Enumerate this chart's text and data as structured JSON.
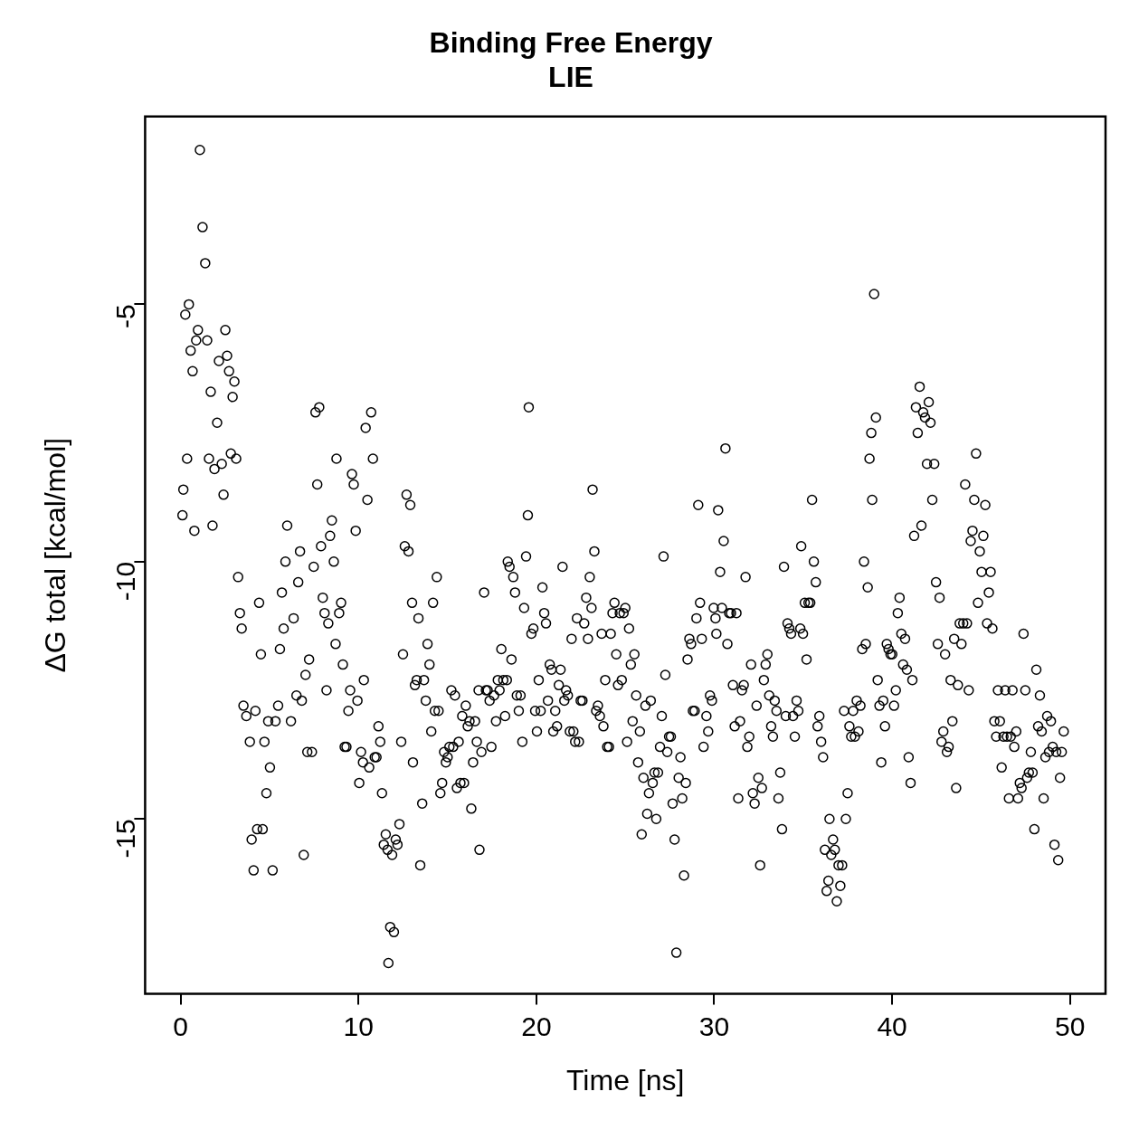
{
  "chart_data": {
    "type": "scatter",
    "title": "Binding Free Energy",
    "subtitle": "LIE",
    "xlabel": "Time [ns]",
    "ylabel": "ΔG total [kcal/mol]",
    "color": "#000000",
    "marker": "circle",
    "grid": false,
    "legend": false,
    "xlim": [
      -2,
      52
    ],
    "ylim": [
      -18.4,
      -1.35
    ],
    "xticks": [
      0,
      10,
      20,
      30,
      40,
      50
    ],
    "yticks": [
      -5,
      -10,
      -15
    ],
    "x": [
      0.1,
      0.15,
      0.26,
      0.36,
      0.46,
      0.56,
      0.67,
      0.77,
      0.87,
      0.97,
      1.08,
      1.23,
      1.38,
      1.49,
      1.59,
      1.69,
      1.79,
      1.9,
      2.05,
      2.15,
      2.31,
      2.41,
      2.51,
      2.61,
      2.72,
      2.82,
      2.92,
      3.02,
      3.12,
      3.23,
      3.33,
      3.43,
      3.53,
      3.69,
      3.89,
      3.99,
      4.1,
      4.2,
      4.3,
      4.41,
      4.51,
      4.61,
      4.71,
      4.82,
      4.92,
      5.02,
      5.17,
      5.33,
      5.48,
      5.58,
      5.69,
      5.79,
      5.89,
      5.99,
      6.2,
      6.35,
      6.51,
      6.61,
      6.71,
      6.81,
      6.92,
      7.02,
      7.12,
      7.22,
      7.38,
      7.48,
      7.58,
      7.68,
      7.79,
      7.89,
      7.99,
      8.09,
      8.2,
      8.3,
      8.4,
      8.5,
      8.61,
      8.71,
      8.76,
      8.91,
      9.02,
      9.12,
      9.22,
      9.32,
      9.43,
      9.53,
      9.63,
      9.73,
      9.84,
      9.94,
      10.04,
      10.14,
      10.25,
      10.3,
      10.4,
      10.5,
      10.6,
      10.71,
      10.81,
      10.91,
      11.01,
      11.12,
      11.22,
      11.32,
      11.42,
      11.53,
      11.63,
      11.68,
      11.78,
      11.89,
      11.99,
      12.09,
      12.19,
      12.3,
      12.4,
      12.5,
      12.6,
      12.7,
      12.81,
      12.91,
      13.01,
      13.06,
      13.17,
      13.27,
      13.37,
      13.47,
      13.58,
      13.68,
      13.78,
      13.88,
      13.99,
      14.09,
      14.19,
      14.29,
      14.4,
      14.5,
      14.6,
      14.7,
      14.81,
      14.91,
      15.01,
      15.11,
      15.22,
      15.32,
      15.42,
      15.53,
      15.63,
      15.73,
      15.83,
      15.93,
      16.03,
      16.14,
      16.24,
      16.34,
      16.44,
      16.55,
      16.65,
      16.75,
      16.8,
      16.91,
      17.06,
      17.16,
      17.26,
      17.37,
      17.47,
      17.62,
      17.73,
      17.83,
      17.93,
      18.03,
      18.14,
      18.24,
      18.34,
      18.39,
      18.49,
      18.6,
      18.7,
      18.8,
      18.9,
      19.01,
      19.11,
      19.21,
      19.31,
      19.42,
      19.52,
      19.57,
      19.72,
      19.83,
      19.93,
      20.03,
      20.13,
      20.24,
      20.34,
      20.44,
      20.54,
      20.65,
      20.75,
      20.85,
      20.95,
      21.06,
      21.16,
      21.26,
      21.36,
      21.47,
      21.57,
      21.67,
      21.77,
      21.88,
      21.98,
      22.08,
      22.18,
      22.28,
      22.39,
      22.49,
      22.59,
      22.69,
      22.8,
      22.9,
      23.0,
      23.1,
      23.16,
      23.26,
      23.36,
      23.46,
      23.57,
      23.67,
      23.77,
      23.87,
      23.98,
      24.08,
      24.18,
      24.28,
      24.39,
      24.49,
      24.59,
      24.69,
      24.8,
      24.9,
      25.0,
      25.1,
      25.21,
      25.31,
      25.41,
      25.51,
      25.61,
      25.72,
      25.82,
      25.92,
      26.02,
      26.13,
      26.23,
      26.33,
      26.43,
      26.54,
      26.64,
      26.74,
      26.84,
      26.95,
      27.05,
      27.15,
      27.25,
      27.36,
      27.46,
      27.56,
      27.66,
      27.77,
      27.87,
      28.0,
      28.1,
      28.2,
      28.3,
      28.4,
      28.5,
      28.6,
      28.7,
      28.8,
      28.9,
      29.0,
      29.1,
      29.2,
      29.3,
      29.4,
      29.56,
      29.66,
      29.76,
      29.87,
      29.97,
      30.07,
      30.12,
      30.22,
      30.33,
      30.43,
      30.53,
      30.63,
      30.74,
      30.84,
      30.94,
      31.05,
      31.15,
      31.25,
      31.35,
      31.45,
      31.56,
      31.66,
      31.76,
      31.86,
      31.97,
      32.07,
      32.17,
      32.27,
      32.38,
      32.48,
      32.58,
      32.68,
      32.79,
      32.89,
      32.99,
      33.09,
      33.2,
      33.3,
      33.4,
      33.5,
      33.61,
      33.71,
      33.81,
      33.92,
      34.02,
      34.12,
      34.22,
      34.32,
      34.43,
      34.53,
      34.63,
      34.73,
      34.84,
      34.89,
      34.99,
      35.09,
      35.19,
      35.3,
      35.4,
      35.5,
      35.6,
      35.71,
      35.81,
      35.91,
      36.01,
      36.12,
      36.22,
      36.32,
      36.42,
      36.48,
      36.58,
      36.68,
      36.78,
      36.89,
      36.99,
      37.09,
      37.19,
      37.3,
      37.4,
      37.5,
      37.6,
      37.7,
      37.81,
      37.91,
      38.01,
      38.11,
      38.22,
      38.32,
      38.42,
      38.52,
      38.63,
      38.73,
      38.83,
      38.88,
      38.99,
      39.09,
      39.19,
      39.29,
      39.39,
      39.5,
      39.6,
      39.7,
      39.8,
      39.91,
      40.01,
      40.11,
      40.21,
      40.32,
      40.42,
      40.52,
      40.62,
      40.73,
      40.83,
      40.93,
      41.04,
      41.14,
      41.24,
      41.34,
      41.44,
      41.55,
      41.65,
      41.75,
      41.85,
      41.96,
      42.06,
      42.16,
      42.26,
      42.37,
      42.47,
      42.57,
      42.67,
      42.78,
      42.88,
      42.98,
      43.08,
      43.18,
      43.29,
      43.39,
      43.49,
      43.6,
      43.7,
      43.8,
      43.9,
      44.0,
      44.11,
      44.21,
      44.31,
      44.42,
      44.52,
      44.62,
      44.72,
      44.83,
      44.93,
      45.03,
      45.13,
      45.24,
      45.34,
      45.44,
      45.54,
      45.64,
      45.75,
      45.85,
      45.95,
      46.06,
      46.16,
      46.26,
      46.36,
      46.46,
      46.57,
      46.67,
      46.77,
      46.87,
      46.98,
      47.08,
      47.18,
      47.28,
      47.39,
      47.49,
      47.59,
      47.69,
      47.8,
      47.9,
      48.0,
      48.11,
      48.21,
      48.31,
      48.41,
      48.52,
      48.62,
      48.72,
      48.82,
      48.93,
      49.03,
      49.13,
      49.23,
      49.34,
      49.44,
      49.54,
      49.65
    ],
    "values": [
      -9.1,
      -8.6,
      -5.2,
      -8.0,
      -5.0,
      -5.9,
      -6.3,
      -9.4,
      -5.7,
      -5.5,
      -2.0,
      -3.5,
      -4.2,
      -5.7,
      -8.0,
      -6.7,
      -9.3,
      -8.2,
      -7.3,
      -6.1,
      -8.1,
      -8.7,
      -5.5,
      -6.0,
      -6.3,
      -7.9,
      -6.8,
      -6.5,
      -8.0,
      -10.3,
      -11.0,
      -11.3,
      -12.8,
      -13.0,
      -13.5,
      -15.4,
      -16.0,
      -12.9,
      -15.2,
      -10.8,
      -11.8,
      -15.2,
      -13.5,
      -14.5,
      -13.1,
      -14.0,
      -16.0,
      -13.1,
      -12.8,
      -11.7,
      -10.6,
      -11.3,
      -10.0,
      -9.3,
      -13.1,
      -11.1,
      -12.6,
      -10.4,
      -9.8,
      -12.7,
      -15.7,
      -12.2,
      -13.7,
      -11.9,
      -13.7,
      -10.1,
      -7.1,
      -8.5,
      -7.0,
      -9.7,
      -10.7,
      -11.0,
      -12.5,
      -11.2,
      -9.5,
      -9.2,
      -10.0,
      -11.6,
      -8.0,
      -11.0,
      -10.8,
      -12.0,
      -13.6,
      -13.6,
      -12.9,
      -12.5,
      -8.3,
      -8.5,
      -9.4,
      -12.7,
      -14.3,
      -13.7,
      -13.9,
      -12.3,
      -7.4,
      -8.8,
      -14.0,
      -7.1,
      -8.0,
      -13.8,
      -13.8,
      -13.2,
      -13.5,
      -14.5,
      -15.5,
      -15.3,
      -15.6,
      -17.8,
      -17.1,
      -15.7,
      -17.2,
      -15.4,
      -15.5,
      -15.1,
      -13.5,
      -11.8,
      -9.7,
      -8.7,
      -9.8,
      -8.9,
      -10.8,
      -13.9,
      -12.4,
      -12.3,
      -11.1,
      -15.9,
      -14.7,
      -12.3,
      -12.7,
      -11.6,
      -12.0,
      -13.3,
      -10.8,
      -12.9,
      -10.3,
      -12.9,
      -14.5,
      -14.3,
      -13.7,
      -13.9,
      -13.8,
      -13.6,
      -12.5,
      -13.6,
      -12.6,
      -14.4,
      -13.5,
      -14.3,
      -13.0,
      -14.3,
      -12.8,
      -13.2,
      -13.1,
      -14.8,
      -13.9,
      -13.1,
      -13.5,
      -12.5,
      -15.6,
      -13.7,
      -10.6,
      -12.5,
      -12.5,
      -12.7,
      -13.6,
      -12.6,
      -13.1,
      -12.3,
      -12.5,
      -11.7,
      -12.3,
      -13.0,
      -12.3,
      -10.0,
      -10.1,
      -11.9,
      -10.3,
      -10.6,
      -12.6,
      -12.9,
      -12.6,
      -13.5,
      -10.9,
      -9.9,
      -9.1,
      -7.0,
      -11.4,
      -11.3,
      -12.9,
      -13.3,
      -12.3,
      -12.9,
      -10.5,
      -11.0,
      -11.2,
      -12.7,
      -12.0,
      -12.1,
      -13.3,
      -12.9,
      -13.2,
      -12.4,
      -12.1,
      -10.1,
      -12.7,
      -12.5,
      -12.6,
      -13.3,
      -11.5,
      -13.3,
      -13.5,
      -11.1,
      -13.5,
      -12.7,
      -12.7,
      -11.2,
      -10.7,
      -11.5,
      -10.3,
      -10.9,
      -8.6,
      -9.8,
      -12.9,
      -12.8,
      -13.0,
      -11.4,
      -13.2,
      -12.3,
      -13.6,
      -13.6,
      -11.4,
      -11.0,
      -10.8,
      -11.8,
      -12.4,
      -11.0,
      -12.3,
      -11.0,
      -10.9,
      -13.5,
      -11.3,
      -12.0,
      -13.1,
      -11.8,
      -12.6,
      -13.9,
      -13.3,
      -15.3,
      -14.2,
      -12.8,
      -14.9,
      -14.5,
      -12.7,
      -14.3,
      -14.1,
      -15.0,
      -14.1,
      -13.6,
      -13.0,
      -9.9,
      -12.2,
      -13.7,
      -13.4,
      -13.4,
      -14.7,
      -15.4,
      -17.6,
      -14.2,
      -13.8,
      -14.6,
      -16.1,
      -14.3,
      -11.9,
      -11.5,
      -11.6,
      -12.9,
      -12.9,
      -11.1,
      -8.9,
      -10.8,
      -11.5,
      -13.6,
      -13.0,
      -13.3,
      -12.6,
      -12.7,
      -10.9,
      -11.1,
      -11.4,
      -9.0,
      -10.2,
      -10.9,
      -9.6,
      -7.8,
      -11.6,
      -11.0,
      -11.0,
      -12.4,
      -13.2,
      -11.0,
      -14.6,
      -13.1,
      -12.5,
      -12.4,
      -10.3,
      -13.6,
      -13.4,
      -12.0,
      -14.5,
      -14.7,
      -12.8,
      -14.2,
      -15.9,
      -14.4,
      -12.3,
      -12.0,
      -11.8,
      -12.6,
      -13.2,
      -13.4,
      -12.7,
      -12.9,
      -14.6,
      -14.1,
      -15.2,
      -10.1,
      -13.0,
      -11.2,
      -11.3,
      -11.4,
      -13.0,
      -13.4,
      -12.7,
      -12.9,
      -11.3,
      -9.7,
      -11.4,
      -10.8,
      -11.9,
      -10.8,
      -10.8,
      -8.8,
      -10.0,
      -10.4,
      -13.2,
      -13.0,
      -13.5,
      -13.8,
      -15.6,
      -16.4,
      -16.2,
      -15.0,
      -15.7,
      -15.4,
      -15.6,
      -16.6,
      -15.9,
      -16.3,
      -15.9,
      -12.9,
      -15.0,
      -14.5,
      -13.2,
      -13.4,
      -12.9,
      -13.4,
      -12.7,
      -13.3,
      -12.8,
      -11.7,
      -10.0,
      -11.6,
      -10.5,
      -8.0,
      -7.5,
      -8.8,
      -4.8,
      -7.2,
      -12.3,
      -12.8,
      -13.9,
      -12.7,
      -13.2,
      -11.6,
      -11.7,
      -11.8,
      -11.8,
      -12.8,
      -12.5,
      -11.0,
      -10.7,
      -11.4,
      -12.0,
      -11.5,
      -12.1,
      -13.8,
      -14.3,
      -12.3,
      -9.5,
      -7.0,
      -7.5,
      -6.6,
      -9.3,
      -7.1,
      -7.2,
      -8.1,
      -6.9,
      -7.3,
      -8.8,
      -8.1,
      -10.4,
      -11.6,
      -10.7,
      -13.5,
      -13.3,
      -11.8,
      -13.7,
      -13.6,
      -12.3,
      -13.1,
      -11.5,
      -14.4,
      -12.4,
      -11.2,
      -11.6,
      -11.2,
      -8.5,
      -11.2,
      -12.5,
      -9.6,
      -9.4,
      -8.8,
      -7.9,
      -10.8,
      -9.8,
      -10.2,
      -9.5,
      -8.9,
      -11.2,
      -10.6,
      -10.2,
      -11.3,
      -13.1,
      -13.4,
      -12.5,
      -13.1,
      -14.0,
      -13.4,
      -12.5,
      -13.4,
      -14.6,
      -13.4,
      -12.5,
      -13.6,
      -13.3,
      -14.6,
      -14.3,
      -14.4,
      -11.4,
      -12.5,
      -14.2,
      -14.1,
      -13.7,
      -14.1,
      -15.2,
      -12.1,
      -13.2,
      -12.6,
      -13.3,
      -14.6,
      -13.8,
      -13.0,
      -13.7,
      -13.1,
      -13.6,
      -15.5,
      -13.7,
      -15.8,
      -14.2,
      -13.7,
      -13.3
    ]
  }
}
